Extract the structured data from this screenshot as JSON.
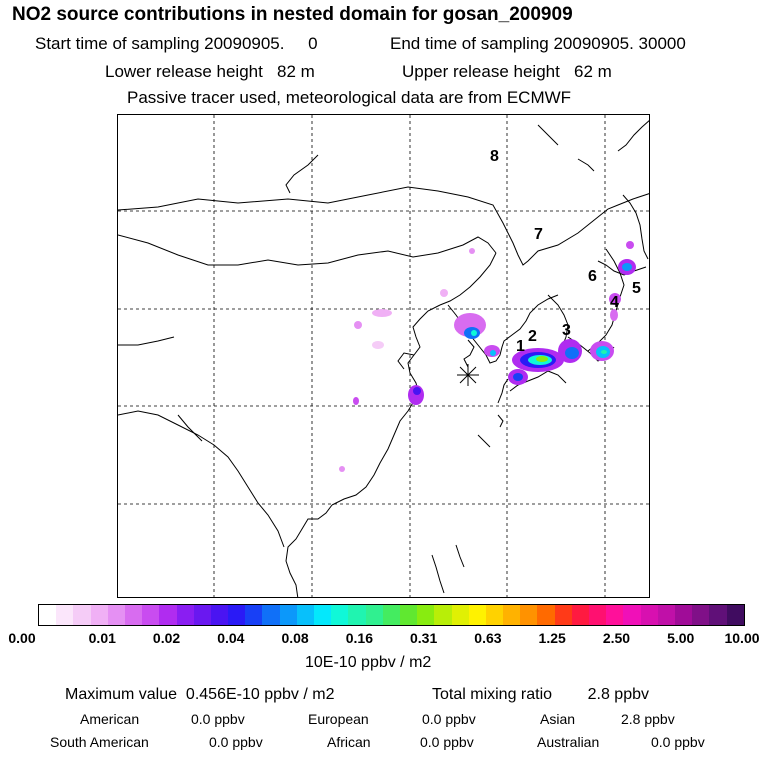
{
  "header": {
    "title": "NO2 source contributions in nested domain for gosan_200909",
    "start_time": "Start time of sampling 20090905.     0",
    "end_time": "End time of sampling 20090905. 30000",
    "lower_height": "Lower release height   82 m",
    "upper_height": "Upper release height   62 m",
    "tracer_note": "Passive tracer used, meteorological data are from ECMWF"
  },
  "chart_data": {
    "type": "heatmap",
    "title": "NO2 source contributions in nested domain for gosan_200909",
    "colorbar_ticks": [
      "0.00",
      "0.01",
      "0.02",
      "0.04",
      "0.08",
      "0.16",
      "0.31",
      "0.63",
      "1.25",
      "2.50",
      "5.00",
      "10.00"
    ],
    "colorbar_unit": "10E-10 ppbv / m2",
    "colors": [
      "#ffffff",
      "#fbe6fb",
      "#f5ccf7",
      "#f0b0f5",
      "#e590f3",
      "#d86cf0",
      "#c94cf0",
      "#b02cf0",
      "#8a1ef2",
      "#6a18f0",
      "#4a14f2",
      "#2a1af6",
      "#1840f6",
      "#1070f8",
      "#0c98fa",
      "#08c0fb",
      "#04e8fc",
      "#10f8d8",
      "#20f4b0",
      "#30f090",
      "#44ec60",
      "#60e830",
      "#88ec10",
      "#b8ee08",
      "#e0f004",
      "#fff200",
      "#ffd200",
      "#ffb200",
      "#ff9200",
      "#ff6a00",
      "#ff3a18",
      "#ff1a40",
      "#ff1070",
      "#ff109a",
      "#f010b8",
      "#d810b0",
      "#c010a8",
      "#a00c98",
      "#801088",
      "#601078",
      "#400c60"
    ],
    "source_labels": [
      {
        "id": "1",
        "label": "1"
      },
      {
        "id": "2",
        "label": "2"
      },
      {
        "id": "3",
        "label": "3"
      },
      {
        "id": "4",
        "label": "4"
      },
      {
        "id": "5",
        "label": "5"
      },
      {
        "id": "6",
        "label": "6"
      },
      {
        "id": "7",
        "label": "7"
      },
      {
        "id": "8",
        "label": "8"
      }
    ],
    "receptor": "gosan",
    "maximum_value": "0.456E-10 ppbv / m2",
    "total_mixing_ratio": "2.8 ppbv"
  },
  "footer": {
    "max_line": "Maximum value  0.456E-10 ppbv / m2",
    "total_line": "Total mixing ratio        2.8 ppbv",
    "regions": [
      {
        "name": "American",
        "value": "0.0 ppbv"
      },
      {
        "name": "European",
        "value": "0.0 ppbv"
      },
      {
        "name": "Asian",
        "value": "2.8 ppbv"
      },
      {
        "name": "South American",
        "value": "0.0 ppbv"
      },
      {
        "name": "African",
        "value": "0.0 ppbv"
      },
      {
        "name": "Australian",
        "value": "0.0 ppbv"
      }
    ]
  }
}
